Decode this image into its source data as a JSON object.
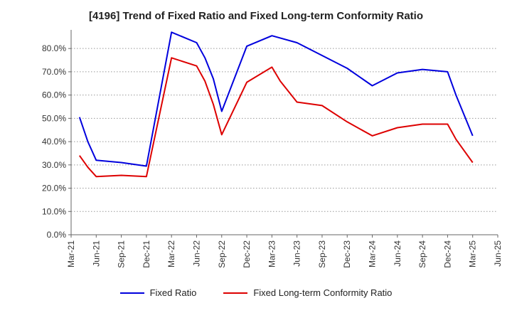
{
  "chart_data": {
    "type": "line",
    "title": "[4196]  Trend of Fixed Ratio and Fixed Long-term Conformity Ratio",
    "xlabel": "",
    "ylabel": "",
    "ylim": [
      0,
      88
    ],
    "yticks": [
      0,
      10,
      20,
      30,
      40,
      50,
      60,
      70,
      80
    ],
    "ytick_labels": [
      "0.0%",
      "10.0%",
      "20.0%",
      "30.0%",
      "40.0%",
      "50.0%",
      "60.0%",
      "70.0%",
      "80.0%"
    ],
    "x_range_months": [
      0,
      51
    ],
    "xtick_months": [
      0,
      3,
      6,
      9,
      12,
      15,
      18,
      21,
      24,
      27,
      30,
      33,
      36,
      39,
      42,
      45,
      48,
      51
    ],
    "xtick_labels": [
      "Mar-21",
      "Jun-21",
      "Sep-21",
      "Dec-21",
      "Mar-22",
      "Jun-22",
      "Sep-22",
      "Dec-22",
      "Mar-23",
      "Jun-23",
      "Sep-23",
      "Dec-23",
      "Mar-24",
      "Jun-24",
      "Sep-24",
      "Dec-24",
      "Mar-25",
      "Jun-25"
    ],
    "grid": true,
    "legend_position": "bottom",
    "series": [
      {
        "name": "Fixed Ratio",
        "color": "#0000dd",
        "x": [
          1,
          2,
          3,
          6,
          9,
          12,
          15,
          16,
          17,
          18,
          21,
          24,
          27,
          30,
          33,
          36,
          39,
          42,
          45,
          46,
          48
        ],
        "values": [
          50.5,
          40,
          32,
          31,
          29.5,
          87,
          82.5,
          76,
          67,
          53,
          81,
          85.5,
          82.5,
          77,
          71.5,
          64,
          69.5,
          71,
          70,
          60,
          42.5
        ]
      },
      {
        "name": "Fixed Long-term Conformity Ratio",
        "color": "#dd0000",
        "x": [
          1,
          2,
          3,
          6,
          9,
          12,
          15,
          16,
          17,
          18,
          21,
          24,
          25,
          27,
          30,
          33,
          36,
          39,
          42,
          45,
          46,
          48
        ],
        "values": [
          34,
          29,
          25,
          25.5,
          25,
          76,
          72.5,
          66,
          56,
          43,
          65.5,
          72,
          66,
          57,
          55.5,
          48.5,
          42.5,
          46,
          47.5,
          47.5,
          41,
          31
        ]
      }
    ]
  }
}
